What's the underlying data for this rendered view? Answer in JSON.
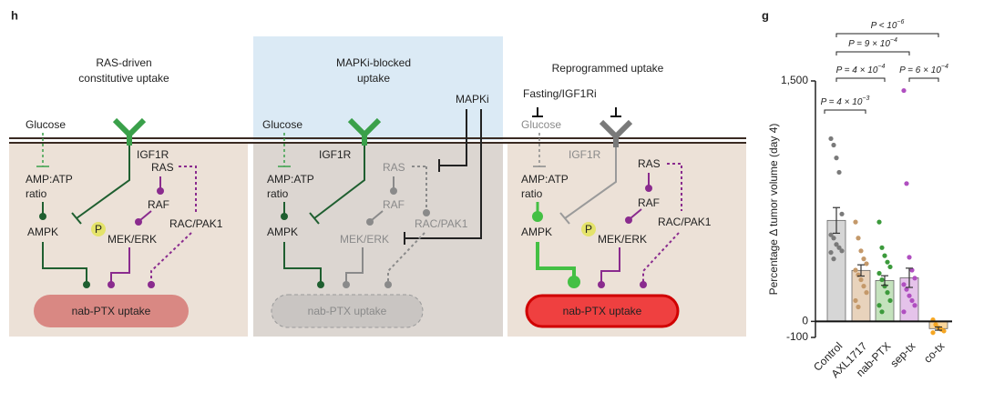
{
  "diagram": {
    "panel_label": "h",
    "panels": [
      {
        "title_lines": [
          "RAS-driven",
          "constitutive uptake"
        ],
        "glucose": "Glucose",
        "igf1r": "IGF1R",
        "amp_atp": "AMP:ATP",
        "ratio": "ratio",
        "ampk": "AMPK",
        "p": "P",
        "mek_erk": "MEK/ERK",
        "ras": "RAS",
        "raf": "RAF",
        "rac_pak1": "RAC/PAK1",
        "uptake": "nab-PTX uptake"
      },
      {
        "title_lines": [
          "MAPKi-blocked",
          "uptake"
        ],
        "mapki": "MAPKi",
        "glucose": "Glucose",
        "igf1r": "IGF1R",
        "amp_atp": "AMP:ATP",
        "ratio": "ratio",
        "ampk": "AMPK",
        "mek_erk": "MEK/ERK",
        "ras": "RAS",
        "raf": "RAF",
        "rac_pak1": "RAC/PAK1",
        "uptake": "nab-PTX uptake"
      },
      {
        "title_lines": [
          "Reprogrammed uptake"
        ],
        "fasting": "Fasting/IGF1Ri",
        "glucose": "Glucose",
        "igf1r": "IGF1R",
        "amp_atp": "AMP:ATP",
        "ratio": "ratio",
        "ampk": "AMPK",
        "p": "P",
        "mek_erk": "MEK/ERK",
        "ras": "RAS",
        "raf": "RAF",
        "rac_pak1": "RAC/PAK1",
        "uptake": "nab-PTX uptake"
      }
    ]
  },
  "chart_data": {
    "type": "bar",
    "panel_label": "g",
    "y_label": "Percentage Δ tumor volume (day 4)",
    "categories": [
      "Control",
      "AXL1717",
      "nab-PTX",
      "sep-tx",
      "co-tx"
    ],
    "values": [
      630,
      318,
      255,
      272,
      -45
    ],
    "errors": [
      80,
      35,
      30,
      60,
      10
    ],
    "bar_colors": [
      "#d6d6d6",
      "#e8d3bc",
      "#c4e2bd",
      "#e5c3ea",
      "#fbd79c"
    ],
    "point_colors": [
      "#7a7a7a",
      "#c4996a",
      "#3c9a3c",
      "#b04fc0",
      "#f5a623"
    ],
    "points": [
      [
        1140,
        1100,
        1020,
        930,
        670,
        540,
        520,
        480,
        460,
        440,
        430,
        390
      ],
      [
        620,
        520,
        440,
        390,
        360,
        320,
        290,
        260,
        220,
        180,
        130,
        90
      ],
      [
        620,
        460,
        410,
        370,
        340,
        300,
        260,
        220,
        180,
        130,
        100,
        60
      ],
      [
        1440,
        860,
        400,
        320,
        270,
        230,
        200,
        160,
        130,
        100,
        60
      ],
      [
        10,
        -20,
        -40,
        -50,
        -60,
        -70
      ]
    ],
    "ylim": [
      -100,
      1500
    ],
    "yticks": [
      -100,
      0,
      {
        "value": 1500,
        "label": "1,500"
      }
    ],
    "annotations": [
      {
        "text": "P < 10",
        "sup": "−6"
      },
      {
        "text": "P = 9 × 10",
        "sup": "−4"
      },
      {
        "text": "P = 4 × 10",
        "sup": "−4"
      },
      {
        "text": "P = 6 × 10",
        "sup": "−4"
      },
      {
        "text": "P = 4 × 10",
        "sup": "−3"
      }
    ]
  }
}
